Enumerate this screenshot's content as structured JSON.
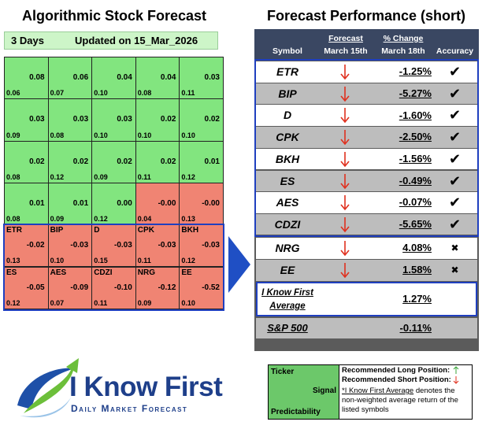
{
  "left_panel": {
    "title": "Algorithmic Stock Forecast",
    "period": "3 Days",
    "updated": "Updated on 15_Mar_2026",
    "cells": [
      {
        "signal": "0.08",
        "predictability": "0.06"
      },
      {
        "signal": "0.06",
        "predictability": "0.07"
      },
      {
        "signal": "0.04",
        "predictability": "0.10"
      },
      {
        "signal": "0.04",
        "predictability": "0.08"
      },
      {
        "signal": "0.03",
        "predictability": "0.11"
      },
      {
        "signal": "0.03",
        "predictability": "0.09"
      },
      {
        "signal": "0.03",
        "predictability": "0.08"
      },
      {
        "signal": "0.03",
        "predictability": "0.10"
      },
      {
        "signal": "0.02",
        "predictability": "0.10"
      },
      {
        "signal": "0.02",
        "predictability": "0.10"
      },
      {
        "signal": "0.02",
        "predictability": "0.08"
      },
      {
        "signal": "0.02",
        "predictability": "0.12"
      },
      {
        "signal": "0.02",
        "predictability": "0.09"
      },
      {
        "signal": "0.02",
        "predictability": "0.11"
      },
      {
        "signal": "0.01",
        "predictability": "0.12"
      },
      {
        "signal": "0.01",
        "predictability": "0.08"
      },
      {
        "signal": "0.01",
        "predictability": "0.09"
      },
      {
        "signal": "0.00",
        "predictability": "0.12"
      },
      {
        "signal": "-0.00",
        "predictability": "0.04"
      },
      {
        "signal": "-0.00",
        "predictability": "0.13"
      },
      {
        "ticker": "ETR",
        "signal": "-0.02",
        "predictability": "0.13"
      },
      {
        "ticker": "BIP",
        "signal": "-0.03",
        "predictability": "0.10"
      },
      {
        "ticker": "D",
        "signal": "-0.03",
        "predictability": "0.15"
      },
      {
        "ticker": "CPK",
        "signal": "-0.03",
        "predictability": "0.11"
      },
      {
        "ticker": "BKH",
        "signal": "-0.03",
        "predictability": "0.12"
      },
      {
        "ticker": "ES",
        "signal": "-0.05",
        "predictability": "0.12"
      },
      {
        "ticker": "AES",
        "signal": "-0.09",
        "predictability": "0.07"
      },
      {
        "ticker": "CDZI",
        "signal": "-0.10",
        "predictability": "0.11"
      },
      {
        "ticker": "NRG",
        "signal": "-0.12",
        "predictability": "0.09"
      },
      {
        "ticker": "EE",
        "signal": "-0.52",
        "predictability": "0.10"
      }
    ]
  },
  "table": {
    "title": "Forecast Performance (short)",
    "columns": [
      {
        "label": "Symbol"
      },
      {
        "label": "Forecast",
        "sub": "March 15th"
      },
      {
        "label": "% Change",
        "sub": "March 18th"
      },
      {
        "label": "Accuracy"
      }
    ],
    "rows": [
      {
        "symbol": "ETR",
        "change": "-1.25%",
        "accuracy": "✔"
      },
      {
        "symbol": "BIP",
        "change": "-5.27%",
        "accuracy": "✔"
      },
      {
        "symbol": "D",
        "change": "-1.60%",
        "accuracy": "✔"
      },
      {
        "symbol": "CPK",
        "change": "-2.50%",
        "accuracy": "✔"
      },
      {
        "symbol": "BKH",
        "change": "-1.56%",
        "accuracy": "✔"
      },
      {
        "symbol": "ES",
        "change": "-0.49%",
        "accuracy": "✔"
      },
      {
        "symbol": "AES",
        "change": "-0.07%",
        "accuracy": "✔"
      },
      {
        "symbol": "CDZI",
        "change": "-5.65%",
        "accuracy": "✔"
      },
      {
        "symbol": "NRG",
        "change": "4.08%",
        "accuracy": "✖"
      },
      {
        "symbol": "EE",
        "change": "1.58%",
        "accuracy": "✖"
      }
    ],
    "average": {
      "label": "I Know First Average",
      "change": "1.27%"
    },
    "benchmark": {
      "label": "S&P 500",
      "change": "-0.11%"
    }
  },
  "legend": {
    "ticker": "Ticker",
    "signal": "Signal",
    "predictability": "Predictability",
    "long": "Recommended Long Position:",
    "short": "Recommended Short Position:",
    "note_link": "*I Know First Average",
    "note": "denotes the non-weighted average return of the listed symbols"
  },
  "logo": {
    "name": "I Know First",
    "tagline": "Daily Market Forecast"
  }
}
